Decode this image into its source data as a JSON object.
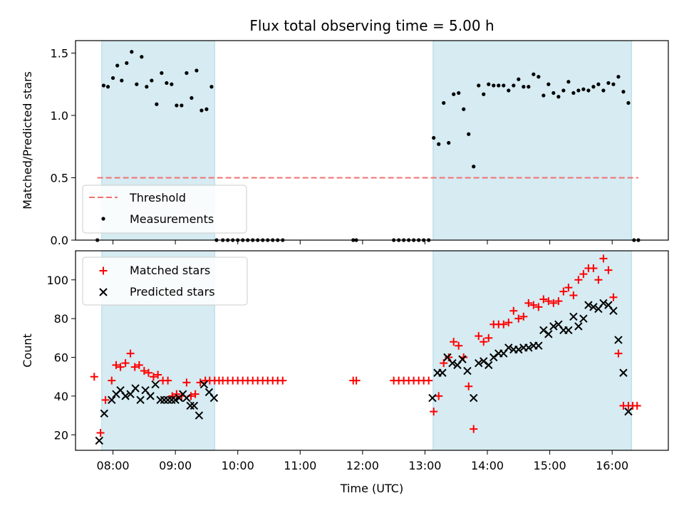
{
  "title": "Flux total observing time = 5.00 h",
  "colors": {
    "band": "#add8e6",
    "threshold": "#f07070",
    "measurement": "#000000",
    "matched": "#ff0000",
    "predicted": "#000000"
  },
  "chart_data": [
    {
      "type": "scatter",
      "panel": "top",
      "ylabel": "Matched/Predicted stars",
      "xlabel": "",
      "xlim": [
        7.4,
        16.9
      ],
      "ylim": [
        0,
        1.6
      ],
      "yticks": [
        0,
        0.5,
        1.0,
        1.5
      ],
      "ytick_labels": [
        "0.0",
        "0.5",
        "1.0",
        "1.5"
      ],
      "xticks": [
        8,
        9,
        10,
        11,
        12,
        13,
        14,
        15,
        16
      ],
      "shaded_intervals": [
        [
          7.82,
          9.63
        ],
        [
          13.13,
          16.31
        ]
      ],
      "threshold": {
        "label": "Threshold",
        "value": 0.5,
        "x_range": [
          7.75,
          16.42
        ]
      },
      "legend": [
        "Threshold",
        "Measurements"
      ],
      "legend_position": "lower-left",
      "measurements": {
        "x": [
          7.75,
          7.85,
          7.92,
          8.0,
          8.07,
          8.14,
          8.22,
          8.3,
          8.38,
          8.46,
          8.54,
          8.62,
          8.7,
          8.78,
          8.86,
          8.94,
          9.02,
          9.1,
          9.18,
          9.26,
          9.34,
          9.42,
          9.5,
          9.58,
          9.66,
          9.76,
          9.84,
          9.92,
          10.0,
          10.08,
          10.16,
          10.24,
          10.32,
          10.4,
          10.48,
          10.56,
          10.64,
          10.72,
          11.85,
          11.9,
          12.5,
          12.58,
          12.66,
          12.74,
          12.82,
          12.9,
          12.98,
          13.06,
          13.14,
          13.22,
          13.3,
          13.38,
          13.46,
          13.54,
          13.62,
          13.7,
          13.78,
          13.86,
          13.94,
          14.02,
          14.1,
          14.18,
          14.26,
          14.34,
          14.42,
          14.5,
          14.58,
          14.66,
          14.74,
          14.82,
          14.9,
          14.98,
          15.06,
          15.14,
          15.22,
          15.3,
          15.38,
          15.46,
          15.54,
          15.62,
          15.7,
          15.78,
          15.86,
          15.94,
          16.02,
          16.1,
          16.18,
          16.26,
          16.35,
          16.42
        ],
        "y": [
          0.0,
          1.24,
          1.23,
          1.3,
          1.4,
          1.28,
          1.42,
          1.51,
          1.25,
          1.47,
          1.23,
          1.28,
          1.09,
          1.34,
          1.26,
          1.25,
          1.08,
          1.08,
          1.34,
          1.14,
          1.36,
          1.04,
          1.05,
          1.23,
          0.0,
          0.0,
          0.0,
          0.0,
          0.0,
          0.0,
          0.0,
          0.0,
          0.0,
          0.0,
          0.0,
          0.0,
          0.0,
          0.0,
          0.0,
          0.0,
          0.0,
          0.0,
          0.0,
          0.0,
          0.0,
          0.0,
          0.0,
          0.0,
          0.82,
          0.77,
          1.1,
          0.78,
          1.17,
          1.18,
          1.05,
          0.85,
          0.59,
          1.24,
          1.17,
          1.25,
          1.24,
          1.24,
          1.24,
          1.2,
          1.24,
          1.29,
          1.23,
          1.23,
          1.33,
          1.31,
          1.16,
          1.25,
          1.18,
          1.15,
          1.2,
          1.27,
          1.18,
          1.2,
          1.21,
          1.2,
          1.23,
          1.25,
          1.2,
          1.26,
          1.25,
          1.31,
          1.19,
          1.1,
          0.0,
          0.0
        ]
      }
    },
    {
      "type": "scatter",
      "panel": "bottom",
      "ylabel": "Count",
      "xlabel": "Time (UTC)",
      "xlim": [
        7.4,
        16.9
      ],
      "ylim": [
        12,
        115
      ],
      "yticks": [
        20,
        40,
        60,
        80,
        100
      ],
      "ytick_labels": [
        "20",
        "40",
        "60",
        "80",
        "100"
      ],
      "xticks": [
        8,
        9,
        10,
        11,
        12,
        13,
        14,
        15,
        16
      ],
      "xtick_labels": [
        "08:00",
        "09:00",
        "10:00",
        "11:00",
        "12:00",
        "13:00",
        "14:00",
        "15:00",
        "16:00"
      ],
      "shaded_intervals": [
        [
          7.82,
          9.63
        ],
        [
          13.13,
          16.31
        ]
      ],
      "legend": [
        "Matched stars",
        "Predicted stars"
      ],
      "legend_position": "upper-left",
      "series": [
        {
          "name": "Matched stars",
          "marker": "+",
          "x": [
            7.7,
            7.8,
            7.88,
            7.98,
            8.05,
            8.12,
            8.2,
            8.28,
            8.35,
            8.42,
            8.5,
            8.57,
            8.65,
            8.72,
            8.8,
            8.88,
            8.95,
            9.02,
            9.1,
            9.18,
            9.25,
            9.32,
            9.4,
            9.48,
            9.55,
            9.63,
            9.7,
            9.76,
            9.84,
            9.92,
            10.0,
            10.08,
            10.16,
            10.24,
            10.32,
            10.4,
            10.48,
            10.56,
            10.64,
            10.72,
            11.85,
            11.9,
            12.5,
            12.58,
            12.66,
            12.74,
            12.82,
            12.9,
            12.98,
            13.06,
            13.14,
            13.22,
            13.3,
            13.38,
            13.46,
            13.54,
            13.62,
            13.7,
            13.78,
            13.86,
            13.94,
            14.02,
            14.1,
            14.18,
            14.26,
            14.34,
            14.42,
            14.5,
            14.58,
            14.66,
            14.74,
            14.82,
            14.9,
            14.98,
            15.06,
            15.14,
            15.22,
            15.3,
            15.38,
            15.46,
            15.54,
            15.62,
            15.7,
            15.78,
            15.86,
            15.94,
            16.02,
            16.1,
            16.18,
            16.26,
            16.33,
            16.4
          ],
          "y": [
            50,
            21,
            38,
            48,
            56,
            55,
            57,
            62,
            55,
            56,
            53,
            52,
            50,
            51,
            48,
            48,
            40,
            41,
            40,
            47,
            40,
            41,
            47,
            48,
            48,
            48,
            48,
            48,
            48,
            48,
            48,
            48,
            48,
            48,
            48,
            48,
            48,
            48,
            48,
            48,
            48,
            48,
            48,
            48,
            48,
            48,
            48,
            48,
            48,
            48,
            32,
            40,
            57,
            60,
            68,
            66,
            60,
            45,
            23,
            71,
            68,
            70,
            77,
            77,
            77,
            78,
            84,
            80,
            81,
            88,
            87,
            86,
            90,
            89,
            88,
            89,
            94,
            96,
            92,
            100,
            103,
            106,
            106,
            100,
            111,
            105,
            91,
            62,
            35,
            35,
            35,
            35
          ]
        },
        {
          "name": "Predicted stars",
          "marker": "x",
          "x": [
            7.78,
            7.86,
            7.98,
            8.05,
            8.12,
            8.2,
            8.28,
            8.36,
            8.44,
            8.52,
            8.6,
            8.68,
            8.76,
            8.82,
            8.88,
            8.94,
            9.0,
            9.06,
            9.12,
            9.18,
            9.24,
            9.3,
            9.38,
            9.46,
            9.54,
            9.62,
            13.12,
            13.2,
            13.28,
            13.36,
            13.44,
            13.52,
            13.6,
            13.68,
            13.78,
            13.86,
            13.94,
            14.02,
            14.1,
            14.18,
            14.26,
            14.34,
            14.42,
            14.5,
            14.58,
            14.66,
            14.74,
            14.82,
            14.9,
            14.98,
            15.06,
            15.14,
            15.22,
            15.3,
            15.38,
            15.46,
            15.54,
            15.62,
            15.7,
            15.78,
            15.86,
            15.94,
            16.02,
            16.1,
            16.18,
            16.26
          ],
          "y": [
            17,
            31,
            38,
            41,
            43,
            40,
            41,
            44,
            38,
            43,
            40,
            46,
            38,
            38,
            38,
            38,
            38,
            39,
            41,
            39,
            35,
            35,
            30,
            46,
            42,
            39,
            39,
            52,
            52,
            60,
            57,
            56,
            59,
            53,
            39,
            57,
            58,
            56,
            60,
            62,
            62,
            65,
            64,
            64,
            65,
            65,
            66,
            66,
            74,
            72,
            76,
            77,
            74,
            74,
            81,
            76,
            80,
            87,
            86,
            85,
            88,
            87,
            84,
            69,
            52,
            32
          ]
        }
      ]
    }
  ]
}
